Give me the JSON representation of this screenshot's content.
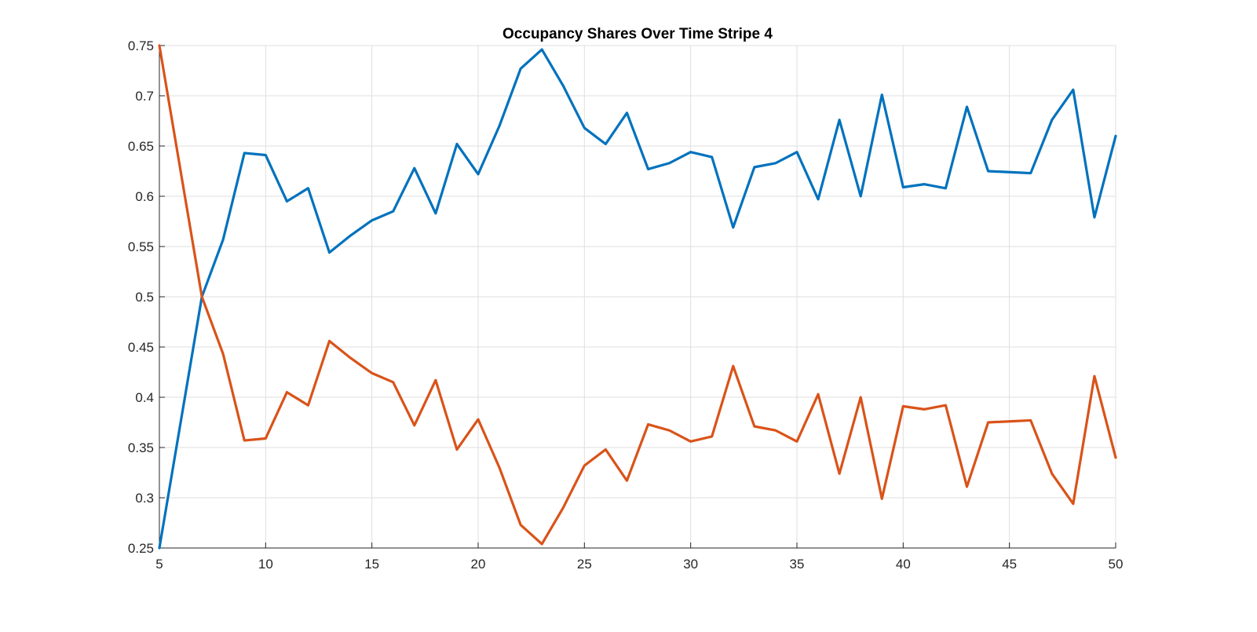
{
  "chart_data": {
    "type": "line",
    "title": "Occupancy Shares Over Time Stripe 4",
    "xlabel": "",
    "ylabel": "",
    "xlim": [
      5,
      50
    ],
    "ylim": [
      0.25,
      0.75
    ],
    "xticks": [
      5,
      10,
      15,
      20,
      25,
      30,
      35,
      40,
      45,
      50
    ],
    "xtick_labels": [
      "5",
      "10",
      "15",
      "20",
      "25",
      "30",
      "35",
      "40",
      "45",
      "50"
    ],
    "yticks": [
      0.25,
      0.3,
      0.35,
      0.4,
      0.45,
      0.5,
      0.55,
      0.6,
      0.65,
      0.7,
      0.75
    ],
    "ytick_labels": [
      "0.25",
      "0.3",
      "0.35",
      "0.4",
      "0.45",
      "0.5",
      "0.55",
      "0.6",
      "0.65",
      "0.7",
      "0.75"
    ],
    "grid": true,
    "legend": "none",
    "x": [
      5,
      6,
      7,
      8,
      9,
      10,
      11,
      12,
      13,
      14,
      15,
      16,
      17,
      18,
      19,
      20,
      21,
      22,
      23,
      24,
      25,
      26,
      27,
      28,
      29,
      30,
      31,
      32,
      33,
      34,
      35,
      36,
      37,
      38,
      39,
      40,
      41,
      42,
      43,
      44,
      45,
      46,
      47,
      48,
      49,
      50
    ],
    "series": [
      {
        "color": "#0072bd",
        "values": [
          0.25,
          0.375,
          0.5,
          0.557,
          0.643,
          0.641,
          0.595,
          0.608,
          0.544,
          0.561,
          0.576,
          0.585,
          0.628,
          0.583,
          0.652,
          0.622,
          0.67,
          0.727,
          0.746,
          0.71,
          0.668,
          0.652,
          0.683,
          0.627,
          0.633,
          0.644,
          0.639,
          0.569,
          0.629,
          0.633,
          0.644,
          0.597,
          0.676,
          0.6,
          0.701,
          0.609,
          0.612,
          0.608,
          0.689,
          0.625,
          0.624,
          0.623,
          0.676,
          0.706,
          0.579,
          0.66
        ]
      },
      {
        "color": "#d95319",
        "values": [
          0.75,
          0.625,
          0.5,
          0.443,
          0.357,
          0.359,
          0.405,
          0.392,
          0.456,
          0.439,
          0.424,
          0.415,
          0.372,
          0.417,
          0.348,
          0.378,
          0.33,
          0.273,
          0.254,
          0.29,
          0.332,
          0.348,
          0.317,
          0.373,
          0.367,
          0.356,
          0.361,
          0.431,
          0.371,
          0.367,
          0.356,
          0.403,
          0.324,
          0.4,
          0.299,
          0.391,
          0.388,
          0.392,
          0.311,
          0.375,
          0.376,
          0.377,
          0.324,
          0.294,
          0.421,
          0.34
        ]
      }
    ]
  }
}
